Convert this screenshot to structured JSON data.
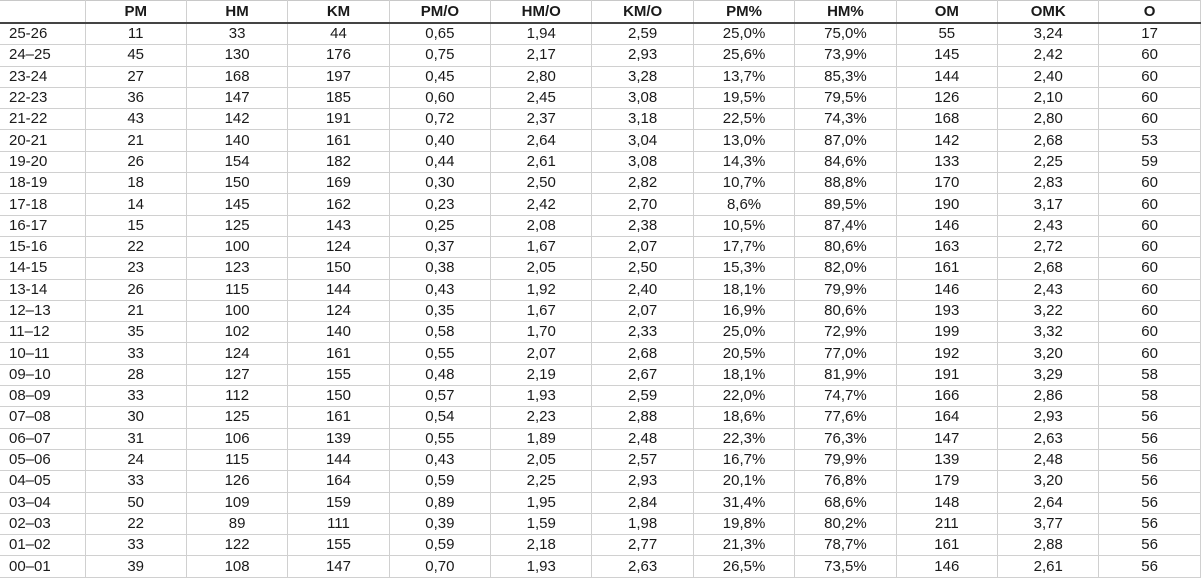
{
  "table": {
    "headers": [
      "",
      "PM",
      "HM",
      "KM",
      "PM/O",
      "HM/O",
      "KM/O",
      "PM%",
      "HM%",
      "OM",
      "OMK",
      "O"
    ],
    "rows": [
      [
        "25-26",
        "11",
        "33",
        "44",
        "0,65",
        "1,94",
        "2,59",
        "25,0%",
        "75,0%",
        "55",
        "3,24",
        "17"
      ],
      [
        "24–25",
        "45",
        "130",
        "176",
        "0,75",
        "2,17",
        "2,93",
        "25,6%",
        "73,9%",
        "145",
        "2,42",
        "60"
      ],
      [
        "23-24",
        "27",
        "168",
        "197",
        "0,45",
        "2,80",
        "3,28",
        "13,7%",
        "85,3%",
        "144",
        "2,40",
        "60"
      ],
      [
        "22-23",
        "36",
        "147",
        "185",
        "0,60",
        "2,45",
        "3,08",
        "19,5%",
        "79,5%",
        "126",
        "2,10",
        "60"
      ],
      [
        "21-22",
        "43",
        "142",
        "191",
        "0,72",
        "2,37",
        "3,18",
        "22,5%",
        "74,3%",
        "168",
        "2,80",
        "60"
      ],
      [
        "20-21",
        "21",
        "140",
        "161",
        "0,40",
        "2,64",
        "3,04",
        "13,0%",
        "87,0%",
        "142",
        "2,68",
        "53"
      ],
      [
        "19-20",
        "26",
        "154",
        "182",
        "0,44",
        "2,61",
        "3,08",
        "14,3%",
        "84,6%",
        "133",
        "2,25",
        "59"
      ],
      [
        "18-19",
        "18",
        "150",
        "169",
        "0,30",
        "2,50",
        "2,82",
        "10,7%",
        "88,8%",
        "170",
        "2,83",
        "60"
      ],
      [
        "17-18",
        "14",
        "145",
        "162",
        "0,23",
        "2,42",
        "2,70",
        "8,6%",
        "89,5%",
        "190",
        "3,17",
        "60"
      ],
      [
        "16-17",
        "15",
        "125",
        "143",
        "0,25",
        "2,08",
        "2,38",
        "10,5%",
        "87,4%",
        "146",
        "2,43",
        "60"
      ],
      [
        "15-16",
        "22",
        "100",
        "124",
        "0,37",
        "1,67",
        "2,07",
        "17,7%",
        "80,6%",
        "163",
        "2,72",
        "60"
      ],
      [
        "14-15",
        "23",
        "123",
        "150",
        "0,38",
        "2,05",
        "2,50",
        "15,3%",
        "82,0%",
        "161",
        "2,68",
        "60"
      ],
      [
        "13-14",
        "26",
        "115",
        "144",
        "0,43",
        "1,92",
        "2,40",
        "18,1%",
        "79,9%",
        "146",
        "2,43",
        "60"
      ],
      [
        "12–13",
        "21",
        "100",
        "124",
        "0,35",
        "1,67",
        "2,07",
        "16,9%",
        "80,6%",
        "193",
        "3,22",
        "60"
      ],
      [
        "11–12",
        "35",
        "102",
        "140",
        "0,58",
        "1,70",
        "2,33",
        "25,0%",
        "72,9%",
        "199",
        "3,32",
        "60"
      ],
      [
        "10–11",
        "33",
        "124",
        "161",
        "0,55",
        "2,07",
        "2,68",
        "20,5%",
        "77,0%",
        "192",
        "3,20",
        "60"
      ],
      [
        "09–10",
        "28",
        "127",
        "155",
        "0,48",
        "2,19",
        "2,67",
        "18,1%",
        "81,9%",
        "191",
        "3,29",
        "58"
      ],
      [
        "08–09",
        "33",
        "112",
        "150",
        "0,57",
        "1,93",
        "2,59",
        "22,0%",
        "74,7%",
        "166",
        "2,86",
        "58"
      ],
      [
        "07–08",
        "30",
        "125",
        "161",
        "0,54",
        "2,23",
        "2,88",
        "18,6%",
        "77,6%",
        "164",
        "2,93",
        "56"
      ],
      [
        "06–07",
        "31",
        "106",
        "139",
        "0,55",
        "1,89",
        "2,48",
        "22,3%",
        "76,3%",
        "147",
        "2,63",
        "56"
      ],
      [
        "05–06",
        "24",
        "115",
        "144",
        "0,43",
        "2,05",
        "2,57",
        "16,7%",
        "79,9%",
        "139",
        "2,48",
        "56"
      ],
      [
        "04–05",
        "33",
        "126",
        "164",
        "0,59",
        "2,25",
        "2,93",
        "20,1%",
        "76,8%",
        "179",
        "3,20",
        "56"
      ],
      [
        "03–04",
        "50",
        "109",
        "159",
        "0,89",
        "1,95",
        "2,84",
        "31,4%",
        "68,6%",
        "148",
        "2,64",
        "56"
      ],
      [
        "02–03",
        "22",
        "89",
        "111",
        "0,39",
        "1,59",
        "1,98",
        "19,8%",
        "80,2%",
        "211",
        "3,77",
        "56"
      ],
      [
        "01–02",
        "33",
        "122",
        "155",
        "0,59",
        "2,18",
        "2,77",
        "21,3%",
        "78,7%",
        "161",
        "2,88",
        "56"
      ],
      [
        "00–01",
        "39",
        "108",
        "147",
        "0,70",
        "1,93",
        "2,63",
        "26,5%",
        "73,5%",
        "146",
        "2,61",
        "56"
      ]
    ]
  }
}
